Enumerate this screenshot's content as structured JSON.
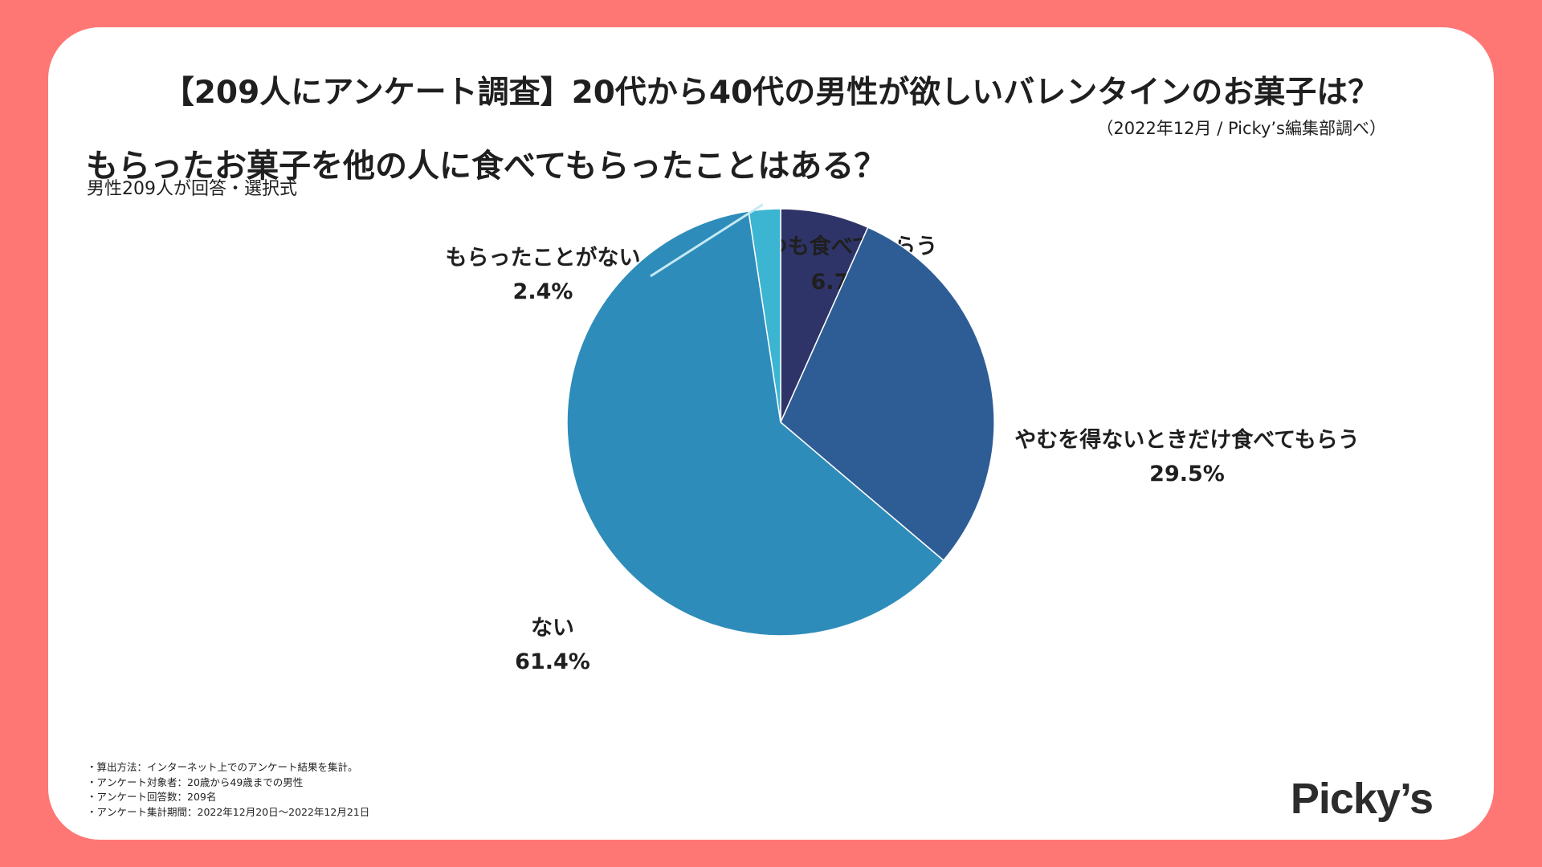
{
  "title": "【209人にアンケート調査】20代から40代の男性が欲しいバレンタインのお菓子は？",
  "source": "（2022年12月 / Picky’s編集部調べ）",
  "question": "もらったお菓子を他の人に食べてもらったことはある？",
  "respondents": "男性209人が回答・選択式",
  "chart_data": {
    "type": "pie",
    "title": "もらったお菓子を他の人に食べてもらったことはある？",
    "subtitle": "男性209人が回答・選択式",
    "slices": [
      {
        "label": "いつも食べてもらう",
        "value": 6.7,
        "display": "6.7%",
        "color": "#2f3468"
      },
      {
        "label": "やむを得ないときだけ食べてもらう",
        "value": 29.5,
        "display": "29.5%",
        "color": "#2e5d96"
      },
      {
        "label": "ない",
        "value": 61.4,
        "display": "61.4%",
        "color": "#2e8cba"
      },
      {
        "label": "もらったことがない",
        "value": 2.4,
        "display": "2.4%",
        "color": "#3cb5d3"
      }
    ],
    "start": "12 o'clock",
    "direction": "clockwise",
    "leader_line_color": "#c4e9f3",
    "unit": "%"
  },
  "footnotes": [
    "・算出方法：インターネット上でのアンケート結果を集計。",
    "・アンケート対象者：20歳から49歳までの男性",
    "・アンケート回答数：209名",
    "・アンケート集計期間：2022年12月20日〜2022年12月21日"
  ],
  "logo": "Picky’s",
  "colors": {
    "background": "#fe7775",
    "card": "#ffffff",
    "text": "#1f1f1f"
  }
}
